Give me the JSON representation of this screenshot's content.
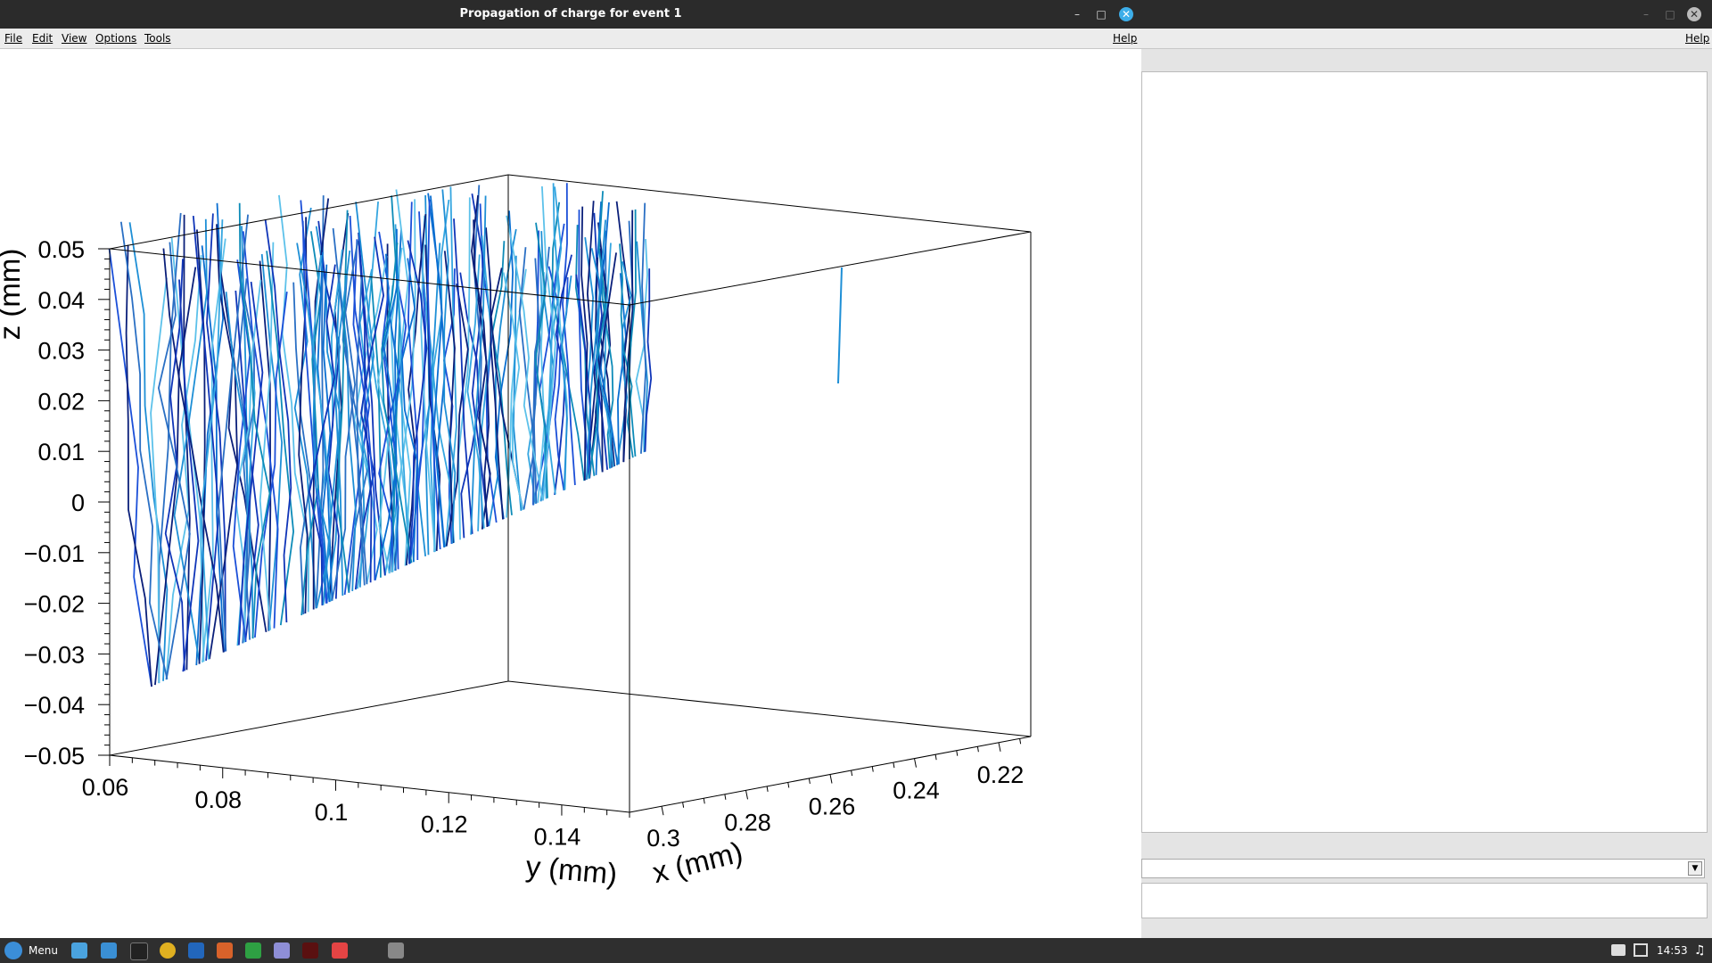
{
  "window": {
    "title": "Propagation of charge for event 1"
  },
  "menu": {
    "file": "File",
    "edit": "Edit",
    "view": "View",
    "options": "Options",
    "tools": "Tools",
    "help": "Help"
  },
  "right_window": {
    "help": "Help"
  },
  "taskbar": {
    "menu_label": "Menu",
    "clock": "14:53"
  },
  "chart_data": {
    "type": "line",
    "title": "",
    "xlabel": "x (mm)",
    "ylabel": "y (mm)",
    "zlabel": "z (mm)",
    "xlim": [
      0.22,
      0.3
    ],
    "ylim": [
      0.06,
      0.15
    ],
    "zlim": [
      -0.05,
      0.05
    ],
    "x_ticks": [
      "0.3",
      "0.28",
      "0.26",
      "0.24",
      "0.22"
    ],
    "y_ticks": [
      "0.06",
      "0.08",
      "0.1",
      "0.12",
      "0.14"
    ],
    "z_ticks": [
      "0.05",
      "0.04",
      "0.03",
      "0.02",
      "0.01",
      "0",
      "−0.01",
      "−0.02",
      "−0.03",
      "−0.04",
      "−0.05"
    ],
    "series_colors": [
      "#0a1f7a",
      "#1035b8",
      "#1b4fd8",
      "#0a6ed1",
      "#1e8fd6",
      "#35a6e0",
      "#5cc1ea",
      "#0d8bb8",
      "#2a6fc4"
    ],
    "tracks_description_count": 180
  }
}
